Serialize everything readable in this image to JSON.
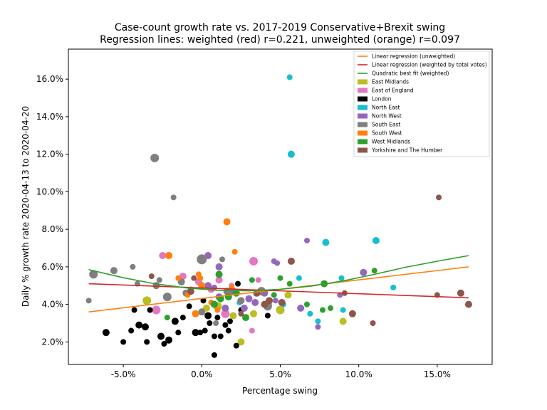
{
  "chart_data": {
    "type": "scatter",
    "title": "Case-count growth rate vs. 2017-2019 Conservative+Brexit swing",
    "subtitle": "Regression lines: weighted (red) r=0.221, unweighted (orange) r=0.097",
    "xlabel": "Percentage swing",
    "ylabel": "Daily % growth rate 2020-04-13 to 2020-04-20",
    "xlim": [
      -8.5,
      18.5
    ],
    "ylim": [
      0.8,
      17.6
    ],
    "xticks": [
      -5,
      0,
      5,
      10,
      15
    ],
    "xtick_labels": [
      "-5.0%",
      "0.0%",
      "5.0%",
      "10.0%",
      "15.0%"
    ],
    "yticks": [
      2,
      4,
      6,
      8,
      10,
      12,
      14,
      16
    ],
    "ytick_labels": [
      "2.0%",
      "4.0%",
      "6.0%",
      "8.0%",
      "10.0%",
      "12.0%",
      "14.0%",
      "16.0%"
    ],
    "grid": false,
    "legend_position": "top-right",
    "lines": [
      {
        "name": "Linear regression (unweighted)",
        "color": "#ff7f0e",
        "x": [
          -7.2,
          17.0
        ],
        "y": [
          3.6,
          6.0
        ]
      },
      {
        "name": "Linear regression (weighted by total votes)",
        "color": "#d62728",
        "x": [
          -7.2,
          17.0
        ],
        "y": [
          5.1,
          4.35
        ]
      },
      {
        "name": "Quadratic best fit (weighted)",
        "color": "#2ca02c",
        "x": [
          -7.2,
          -5,
          -3,
          -1,
          1,
          3,
          5,
          7,
          9,
          11,
          13,
          15,
          17
        ],
        "y": [
          5.85,
          5.42,
          5.1,
          4.88,
          4.75,
          4.72,
          4.8,
          4.98,
          5.25,
          5.6,
          5.98,
          6.3,
          6.6
        ]
      }
    ],
    "series": [
      {
        "name": "East Midlands",
        "color": "#bcbd22",
        "points": [
          [
            -3.5,
            4.2,
            6
          ],
          [
            0.3,
            3.8,
            5
          ],
          [
            1.0,
            3.9,
            6
          ],
          [
            2.5,
            2.0,
            5
          ],
          [
            3.3,
            3.5,
            5
          ],
          [
            4.2,
            4.0,
            6
          ],
          [
            5.0,
            3.7,
            6
          ],
          [
            5.5,
            4.5,
            5
          ],
          [
            9.0,
            3.1,
            5
          ],
          [
            2.0,
            3.4,
            5
          ]
        ]
      },
      {
        "name": "East of England",
        "color": "#e377c2",
        "points": [
          [
            -2.5,
            6.6,
            5
          ],
          [
            -1.2,
            5.5,
            5
          ],
          [
            -2.9,
            3.7,
            6
          ],
          [
            0.6,
            4.8,
            5
          ],
          [
            1.1,
            5.3,
            5
          ],
          [
            1.5,
            3.5,
            6
          ],
          [
            1.9,
            5.0,
            4
          ],
          [
            3.3,
            6.3,
            6
          ],
          [
            3.2,
            2.6,
            4
          ],
          [
            3.6,
            5.3,
            4
          ],
          [
            1.7,
            4.5,
            5
          ],
          [
            -0.2,
            5.2,
            5
          ]
        ]
      },
      {
        "name": "London",
        "color": "#000000",
        "points": [
          [
            -6.1,
            2.5,
            5
          ],
          [
            -5.0,
            2.0,
            4
          ],
          [
            -4.5,
            2.6,
            4
          ],
          [
            -4.3,
            3.7,
            4
          ],
          [
            -4.0,
            2.9,
            5
          ],
          [
            -3.5,
            2.0,
            4
          ],
          [
            -3.6,
            2.8,
            5
          ],
          [
            -3.3,
            3.7,
            4
          ],
          [
            -2.6,
            2.3,
            5
          ],
          [
            -2.4,
            1.9,
            4
          ],
          [
            -2.1,
            2.1,
            5
          ],
          [
            -1.7,
            3.1,
            5
          ],
          [
            -1.5,
            2.5,
            4
          ],
          [
            -1.2,
            3.3,
            4
          ],
          [
            -0.8,
            3.9,
            4
          ],
          [
            -0.4,
            2.5,
            5
          ],
          [
            -0.1,
            2.5,
            4
          ],
          [
            0.1,
            4.2,
            4
          ],
          [
            0.4,
            3.4,
            5
          ],
          [
            0.5,
            3.0,
            4
          ],
          [
            0.8,
            2.3,
            4
          ],
          [
            0.8,
            1.3,
            4
          ],
          [
            1.0,
            3.3,
            4
          ],
          [
            1.2,
            2.3,
            4
          ],
          [
            1.5,
            2.9,
            4
          ],
          [
            1.7,
            2.6,
            4
          ],
          [
            2.2,
            1.8,
            4
          ],
          [
            2.5,
            3.7,
            4
          ],
          [
            4.2,
            3.4,
            4
          ],
          [
            1.8,
            3.1,
            4
          ],
          [
            2.3,
            5.1,
            4
          ],
          [
            0.2,
            2.6,
            4
          ]
        ]
      },
      {
        "name": "North East",
        "color": "#17becf",
        "points": [
          [
            5.6,
            16.1,
            4
          ],
          [
            5.7,
            12.0,
            5
          ],
          [
            6.2,
            5.4,
            4
          ],
          [
            6.9,
            3.5,
            4
          ],
          [
            7.4,
            3.1,
            4
          ],
          [
            7.9,
            7.3,
            5
          ],
          [
            8.9,
            5.4,
            4
          ],
          [
            9.0,
            3.7,
            4
          ],
          [
            11.1,
            7.4,
            5
          ],
          [
            12.2,
            4.9,
            4
          ],
          [
            5.2,
            4.0,
            4
          ],
          [
            2.4,
            4.1,
            4
          ]
        ]
      },
      {
        "name": "North West",
        "color": "#9467bd",
        "points": [
          [
            0.4,
            6.6,
            5
          ],
          [
            1.1,
            6.0,
            5
          ],
          [
            0.4,
            5.0,
            5
          ],
          [
            2.0,
            4.7,
            5
          ],
          [
            2.7,
            3.8,
            5
          ],
          [
            3.4,
            4.1,
            5
          ],
          [
            4.0,
            4.6,
            5
          ],
          [
            4.6,
            6.3,
            4
          ],
          [
            4.8,
            6.2,
            4
          ],
          [
            4.7,
            4.2,
            4
          ],
          [
            6.3,
            3.8,
            5
          ],
          [
            6.7,
            7.4,
            4
          ],
          [
            7.4,
            2.8,
            4
          ],
          [
            8.8,
            4.5,
            4
          ],
          [
            10.3,
            5.7,
            5
          ],
          [
            1.5,
            3.8,
            5
          ],
          [
            3.0,
            4.3,
            5
          ],
          [
            1.1,
            4.4,
            5
          ],
          [
            0.8,
            4.9,
            4
          ]
        ]
      },
      {
        "name": "South East",
        "color": "#7f7f7f",
        "points": [
          [
            -7.2,
            4.2,
            4
          ],
          [
            -6.9,
            5.6,
            6
          ],
          [
            -5.6,
            5.8,
            5
          ],
          [
            -4.4,
            6.0,
            4
          ],
          [
            -4.1,
            5.1,
            4
          ],
          [
            -3.0,
            11.8,
            6
          ],
          [
            -2.7,
            5.3,
            4
          ],
          [
            -2.2,
            4.4,
            6
          ],
          [
            -1.8,
            9.7,
            4
          ],
          [
            -1.3,
            5.2,
            5
          ],
          [
            -0.7,
            4.8,
            4
          ],
          [
            0.0,
            6.4,
            7
          ],
          [
            0.0,
            3.6,
            5
          ],
          [
            1.3,
            6.4,
            4
          ],
          [
            1.6,
            4.7,
            5
          ],
          [
            2.5,
            4.2,
            5
          ],
          [
            3.8,
            4.7,
            6
          ],
          [
            4.2,
            3.9,
            6
          ],
          [
            0.9,
            3.0,
            4
          ],
          [
            -2.9,
            5.0,
            5
          ],
          [
            -1.0,
            4.6,
            5
          ]
        ]
      },
      {
        "name": "South West",
        "color": "#ff7f0e",
        "points": [
          [
            -2.1,
            6.6,
            5
          ],
          [
            -1.5,
            5.4,
            4
          ],
          [
            -0.9,
            4.5,
            4
          ],
          [
            -0.4,
            3.5,
            5
          ],
          [
            -0.2,
            5.6,
            4
          ],
          [
            0.6,
            4.1,
            4
          ],
          [
            1.0,
            3.7,
            4
          ],
          [
            1.6,
            8.4,
            5
          ],
          [
            2.1,
            6.8,
            4
          ],
          [
            0.0,
            5.0,
            5
          ],
          [
            1.9,
            4.9,
            4
          ],
          [
            -0.1,
            5.4,
            4
          ]
        ]
      },
      {
        "name": "West Midlands",
        "color": "#2ca02c",
        "points": [
          [
            -2.2,
            3.3,
            4
          ],
          [
            0.8,
            4.0,
            5
          ],
          [
            1.2,
            4.3,
            5
          ],
          [
            1.1,
            5.6,
            5
          ],
          [
            2.2,
            4.6,
            5
          ],
          [
            2.8,
            3.3,
            5
          ],
          [
            3.2,
            5.3,
            4
          ],
          [
            5.0,
            5.4,
            4
          ],
          [
            5.6,
            5.1,
            4
          ],
          [
            6.7,
            4.0,
            4
          ],
          [
            7.7,
            3.7,
            4
          ],
          [
            7.8,
            5.1,
            5
          ],
          [
            8.2,
            3.8,
            4
          ],
          [
            11.0,
            5.8,
            4
          ],
          [
            1.7,
            4.4,
            5
          ],
          [
            4.6,
            4.5,
            4
          ]
        ]
      },
      {
        "name": "Yorkshire and The Humber",
        "color": "#8c564b",
        "points": [
          [
            -3.2,
            5.5,
            4
          ],
          [
            -0.7,
            4.7,
            5
          ],
          [
            -0.5,
            5.4,
            4
          ],
          [
            2.5,
            3.5,
            4
          ],
          [
            4.0,
            4.0,
            5
          ],
          [
            4.3,
            4.2,
            5
          ],
          [
            5.1,
            4.1,
            5
          ],
          [
            5.7,
            6.3,
            5
          ],
          [
            9.1,
            4.6,
            4
          ],
          [
            9.6,
            3.5,
            5
          ],
          [
            10.9,
            3.0,
            4
          ],
          [
            15.0,
            4.5,
            4
          ],
          [
            15.1,
            9.7,
            4
          ],
          [
            16.5,
            4.6,
            5
          ],
          [
            17.0,
            4.0,
            5
          ],
          [
            3.5,
            4.6,
            5
          ]
        ]
      }
    ]
  }
}
